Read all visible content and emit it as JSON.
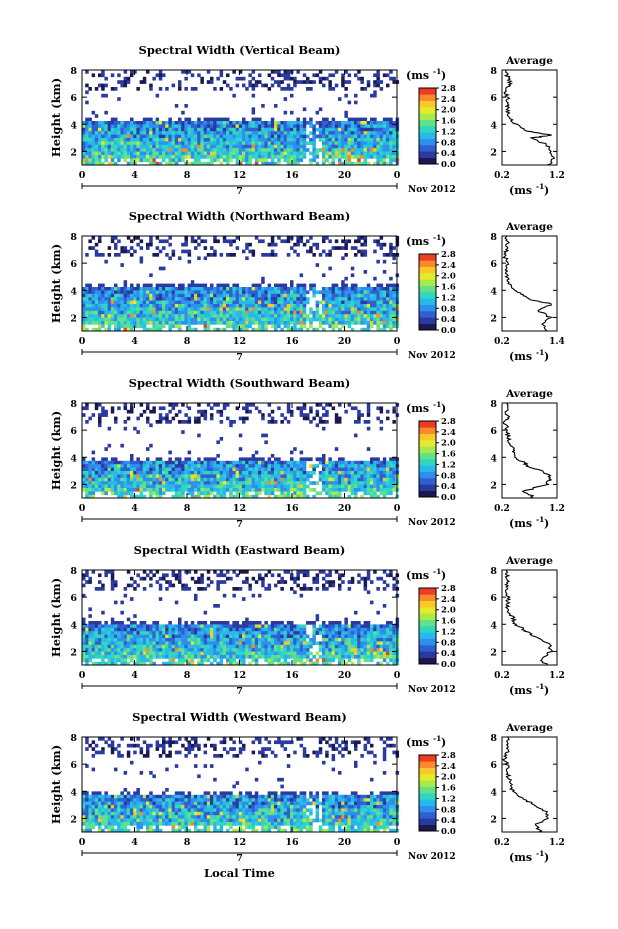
{
  "figure": {
    "bottom_xlabel": "Local Time"
  },
  "colorbar": {
    "unit_label": "(ms",
    "unit_exp": "-1",
    "unit_close": ")",
    "ticks": [
      "0.0",
      "0.4",
      "0.8",
      "1.2",
      "1.6",
      "2.0",
      "2.4",
      "2.8"
    ],
    "colors": [
      "#1a1a50",
      "#2a3aa0",
      "#2f5fd0",
      "#2f8fef",
      "#26b9ea",
      "#31d6c0",
      "#62e08a",
      "#a8ea4a",
      "#e2ec2c",
      "#fcc72a",
      "#f88a2a",
      "#ef3b24"
    ]
  },
  "chart_data": [
    {
      "type": "heatmap",
      "title": "Spectral Width (Vertical Beam)",
      "ylabel": "Height (km)",
      "yticks": [
        "2",
        "4",
        "6",
        "8"
      ],
      "xticks": [
        "0",
        "4",
        "8",
        "12",
        "16",
        "20",
        "0"
      ],
      "date_day": "7",
      "date_label": "Nov 2012",
      "xlim": [
        0,
        24
      ],
      "ylim": [
        1,
        8
      ],
      "dense_top_km": 4.3,
      "gap_hour": 17.5,
      "profile": {
        "title": "Average",
        "xticks": [
          "0.2",
          "1.2"
        ],
        "xlim": [
          0.2,
          1.2
        ],
        "yticks": [
          "2",
          "4",
          "6",
          "8"
        ],
        "ylim": [
          1,
          8
        ],
        "unit_label": "(ms",
        "unit_exp": "-1",
        "unit_close": ")",
        "heights": [
          1.0,
          1.5,
          2.0,
          2.5,
          3.0,
          3.2,
          3.5,
          4.0,
          4.5,
          5.0,
          5.5,
          6.0,
          6.5,
          7.0,
          7.5,
          8.0
        ],
        "values": [
          1.05,
          1.15,
          1.1,
          1.0,
          0.75,
          1.1,
          0.65,
          0.45,
          0.35,
          0.3,
          0.28,
          0.3,
          0.25,
          0.35,
          0.3,
          0.28
        ]
      }
    },
    {
      "type": "heatmap",
      "title": "Spectral Width (Northward Beam)",
      "ylabel": "Height (km)",
      "yticks": [
        "2",
        "4",
        "6",
        "8"
      ],
      "xticks": [
        "0",
        "4",
        "8",
        "12",
        "16",
        "20",
        "0"
      ],
      "date_day": "7",
      "date_label": "Nov 2012",
      "xlim": [
        0,
        24
      ],
      "ylim": [
        1,
        8
      ],
      "dense_top_km": 4.3,
      "gap_hour": 17.5,
      "profile": {
        "title": "Average",
        "xticks": [
          "0.2",
          "1.4"
        ],
        "xlim": [
          0.2,
          1.4
        ],
        "yticks": [
          "2",
          "4",
          "6",
          "8"
        ],
        "ylim": [
          1,
          8
        ],
        "unit_label": "(ms",
        "unit_exp": "-1",
        "unit_close": ")",
        "heights": [
          1.0,
          1.5,
          2.0,
          2.5,
          3.0,
          3.3,
          3.6,
          4.0,
          4.5,
          5.0,
          5.5,
          6.0,
          6.5,
          7.0,
          7.5,
          8.0
        ],
        "values": [
          1.2,
          1.1,
          1.25,
          1.0,
          1.3,
          0.8,
          0.7,
          0.45,
          0.35,
          0.3,
          0.28,
          0.35,
          0.25,
          0.3,
          0.32,
          0.3
        ]
      }
    },
    {
      "type": "heatmap",
      "title": "Spectral Width (Southward Beam)",
      "ylabel": "Height (km)",
      "yticks": [
        "2",
        "4",
        "6",
        "8"
      ],
      "xticks": [
        "0",
        "4",
        "8",
        "12",
        "16",
        "20",
        "0"
      ],
      "date_day": "7",
      "date_label": "Nov 2012",
      "xlim": [
        0,
        24
      ],
      "ylim": [
        1,
        8
      ],
      "dense_top_km": 3.9,
      "gap_hour": 17.5,
      "profile": {
        "title": "Average",
        "xticks": [
          "0.2",
          "1.2"
        ],
        "xlim": [
          0.2,
          1.2
        ],
        "yticks": [
          "2",
          "4",
          "6",
          "8"
        ],
        "ylim": [
          1,
          8
        ],
        "unit_label": "(ms",
        "unit_exp": "-1",
        "unit_close": ")",
        "heights": [
          1.0,
          1.5,
          2.0,
          2.5,
          3.0,
          3.3,
          3.6,
          4.0,
          4.5,
          5.0,
          5.5,
          6.0,
          6.5,
          7.0,
          7.5,
          8.0
        ],
        "values": [
          0.8,
          0.6,
          1.0,
          1.1,
          0.95,
          0.7,
          0.6,
          0.45,
          0.4,
          0.35,
          0.3,
          0.3,
          0.25,
          0.3,
          0.28,
          0.3
        ]
      }
    },
    {
      "type": "heatmap",
      "title": "Spectral Width (Eastward Beam)",
      "ylabel": "Height (km)",
      "yticks": [
        "2",
        "4",
        "6",
        "8"
      ],
      "xticks": [
        "0",
        "4",
        "8",
        "12",
        "16",
        "20",
        "0"
      ],
      "date_day": "7",
      "date_label": "Nov 2012",
      "xlim": [
        0,
        24
      ],
      "ylim": [
        1,
        8
      ],
      "dense_top_km": 4.1,
      "gap_hour": 17.5,
      "profile": {
        "title": "Average",
        "xticks": [
          "0.2",
          "1.2"
        ],
        "xlim": [
          0.2,
          1.2
        ],
        "yticks": [
          "2",
          "4",
          "6",
          "8"
        ],
        "ylim": [
          1,
          8
        ],
        "unit_label": "(ms",
        "unit_exp": "-1",
        "unit_close": ")",
        "heights": [
          1.0,
          1.5,
          2.0,
          2.5,
          3.0,
          3.3,
          3.6,
          4.0,
          4.5,
          5.0,
          5.5,
          6.0,
          6.5,
          7.0,
          7.5,
          8.0
        ],
        "values": [
          1.0,
          0.9,
          1.1,
          1.05,
          0.85,
          0.7,
          0.6,
          0.45,
          0.4,
          0.32,
          0.3,
          0.3,
          0.27,
          0.3,
          0.3,
          0.28
        ]
      }
    },
    {
      "type": "heatmap",
      "title": "Spectral Width (Westward Beam)",
      "ylabel": "Height (km)",
      "yticks": [
        "2",
        "4",
        "6",
        "8"
      ],
      "xticks": [
        "0",
        "4",
        "8",
        "12",
        "16",
        "20",
        "0"
      ],
      "date_day": "7",
      "date_label": "Nov 2012",
      "xlim": [
        0,
        24
      ],
      "ylim": [
        1,
        8
      ],
      "dense_top_km": 3.9,
      "gap_hour": 17.5,
      "profile": {
        "title": "Average",
        "xticks": [
          "0.2",
          "1.2"
        ],
        "xlim": [
          0.2,
          1.2
        ],
        "yticks": [
          "2",
          "4",
          "6",
          "8"
        ],
        "ylim": [
          1,
          8
        ],
        "unit_label": "(ms",
        "unit_exp": "-1",
        "unit_close": ")",
        "heights": [
          1.0,
          1.5,
          2.0,
          2.5,
          3.0,
          3.3,
          3.6,
          4.0,
          4.5,
          5.0,
          5.5,
          6.0,
          6.5,
          7.0,
          7.5,
          8.0
        ],
        "values": [
          0.9,
          0.8,
          1.05,
          1.0,
          0.8,
          0.65,
          0.55,
          0.4,
          0.35,
          0.32,
          0.3,
          0.28,
          0.25,
          0.3,
          0.28,
          0.3
        ]
      }
    }
  ]
}
